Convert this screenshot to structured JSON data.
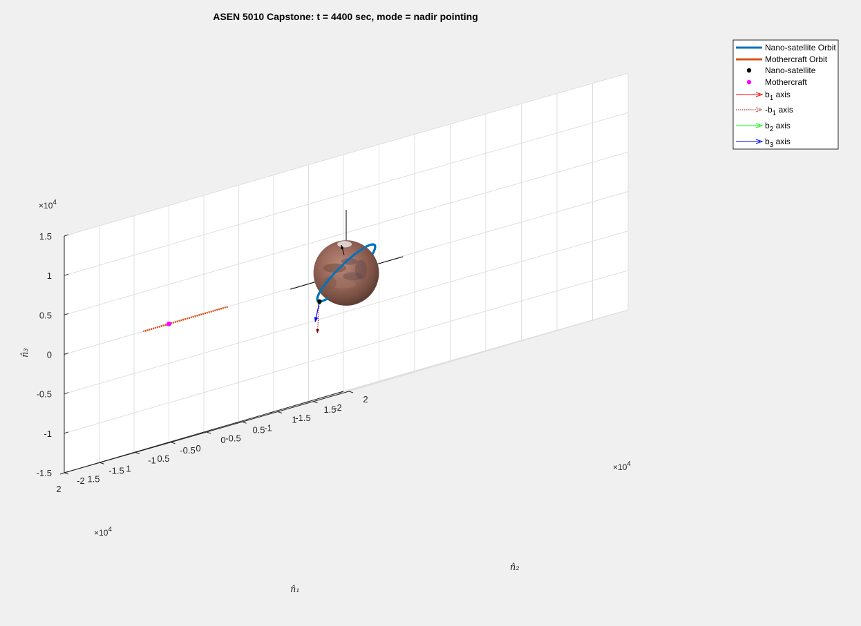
{
  "window": {
    "title": "ASEN 5010 Capstone: t = 4400 sec, mode = nadir pointing"
  },
  "chart_data": {
    "type": "line",
    "projection": "3d",
    "title": "ASEN 5010 Capstone: t = 4400 sec, mode = nadir pointing",
    "xlabel": "n̂₁",
    "ylabel": "n̂₂",
    "zlabel": "n̂₃",
    "xlim": [
      -20000,
      20000
    ],
    "ylim": [
      -20000,
      20000
    ],
    "zlim": [
      -15000,
      15000
    ],
    "x_ticks": [
      "-2",
      "-1.5",
      "-1",
      "-0.5",
      "0",
      "0.5",
      "1",
      "1.5",
      "2"
    ],
    "y_ticks": [
      "-2",
      "-1.5",
      "-1",
      "-0.5",
      "0",
      "0.5",
      "1",
      "1.5",
      "2"
    ],
    "z_ticks": [
      "-1.5",
      "-1",
      "-0.5",
      "0",
      "0.5",
      "1",
      "1.5"
    ],
    "tick_exponent": "10",
    "tick_exponent_power": "4",
    "tick_exponent_prefix": "×",
    "grid": true,
    "legend_position": "top-right",
    "legend": [
      {
        "label": "Nano-satellite Orbit",
        "color": "#0072BD",
        "style": "line"
      },
      {
        "label": "Mothercraft Orbit",
        "color": "#D95319",
        "style": "line"
      },
      {
        "label": "Nano-satellite",
        "color": "#000000",
        "style": "dot"
      },
      {
        "label": "Mothercraft",
        "color": "#FF00FF",
        "style": "dot"
      },
      {
        "label": "b",
        "sub": "1",
        "suffix": " axis",
        "color": "#FF0000",
        "style": "arrow"
      },
      {
        "label": "-b",
        "sub": "1",
        "suffix": " axis",
        "color": "#8B0000",
        "style": "dotted-arrow"
      },
      {
        "label": "b",
        "sub": "2",
        "suffix": " axis",
        "color": "#00FF00",
        "style": "arrow"
      },
      {
        "label": "b",
        "sub": "3",
        "suffix": " axis",
        "color": "#0000FF",
        "style": "arrow"
      }
    ],
    "central_body": {
      "name": "Mars",
      "radius": 3396.19
    },
    "inertial_axes": {
      "length": 8000,
      "color": "#000000"
    },
    "series": [
      {
        "name": "Nano-satellite Orbit",
        "radius": 3796.19,
        "inclination_deg": 45,
        "raan_deg": 20
      },
      {
        "name": "Mothercraft Orbit",
        "radius": 20424.2,
        "inclination_deg": 0,
        "raan_deg": 35
      }
    ],
    "nano_satellite": {
      "theta_deg": 280
    },
    "mothercraft": {
      "theta_deg": 250
    },
    "body_axis_length": 1500
  },
  "colors": {
    "nano_orbit": "#0072BD",
    "mother_orbit": "#D95319",
    "mothercraft": "#FF00FF",
    "b1": "#FF0000",
    "b1_neg": "#8B0000",
    "b2": "#00FF00",
    "b3": "#0000FF",
    "grid": "#dfdfdf",
    "axes_bg": "#ffffff",
    "figure_bg": "#f0f0f0"
  }
}
